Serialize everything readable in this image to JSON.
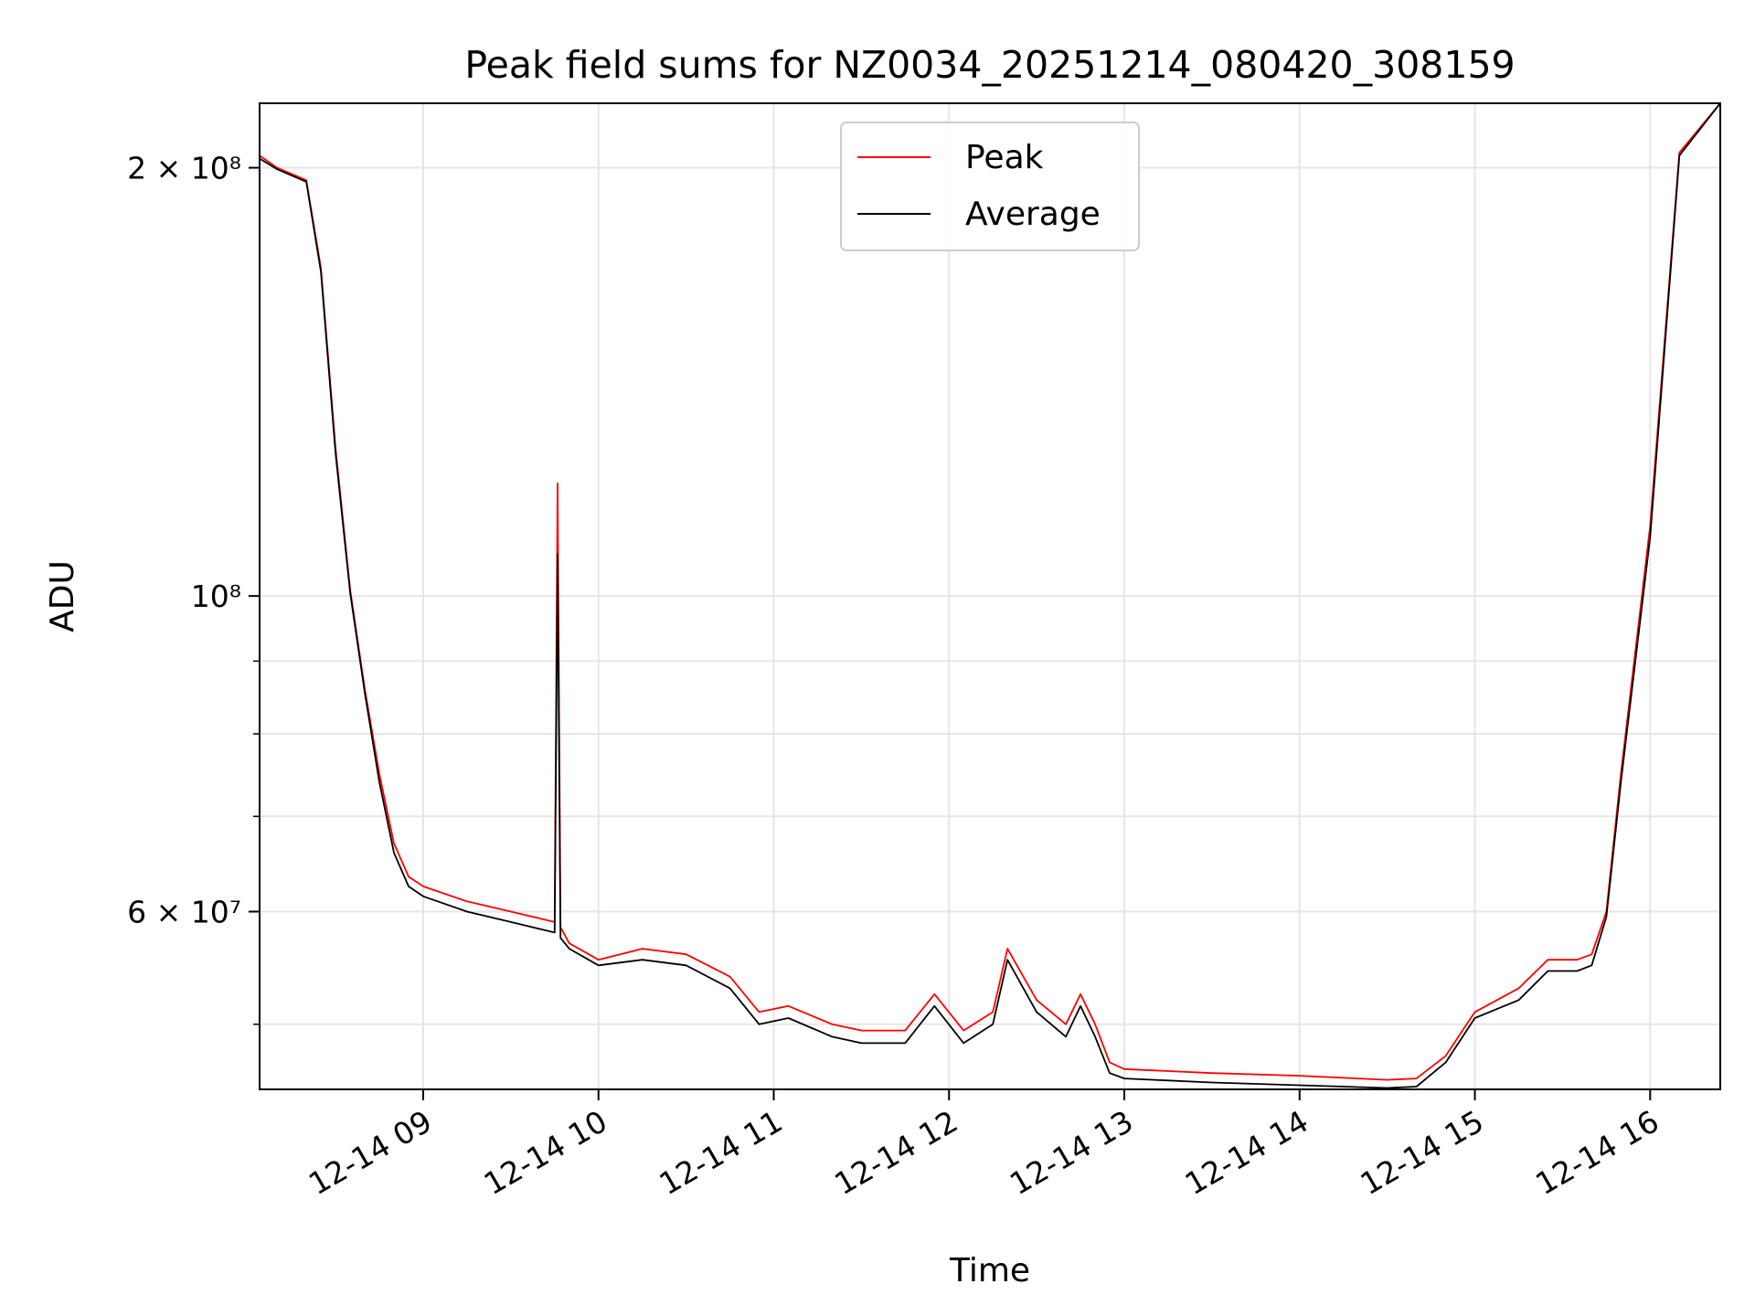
{
  "chart_data": {
    "type": "line",
    "title": "Peak field sums for NZ0034_20251214_080420_308159",
    "xlabel": "Time",
    "ylabel": "ADU",
    "x_axis": {
      "kind": "time",
      "range": [
        "2025-12-14 08:04",
        "2025-12-14 16:24"
      ],
      "ticks": [
        {
          "t": "2025-12-14 09:00",
          "label": "12-14 09"
        },
        {
          "t": "2025-12-14 10:00",
          "label": "12-14 10"
        },
        {
          "t": "2025-12-14 11:00",
          "label": "12-14 11"
        },
        {
          "t": "2025-12-14 12:00",
          "label": "12-14 12"
        },
        {
          "t": "2025-12-14 13:00",
          "label": "12-14 13"
        },
        {
          "t": "2025-12-14 14:00",
          "label": "12-14 14"
        },
        {
          "t": "2025-12-14 15:00",
          "label": "12-14 15"
        },
        {
          "t": "2025-12-14 16:00",
          "label": "12-14 16"
        }
      ]
    },
    "y_axis": {
      "scale": "log",
      "range": [
        45000000,
        222000000
      ],
      "major_ticks": [
        {
          "v": 200000000,
          "label": "2 × 10⁸"
        },
        {
          "v": 100000000,
          "label": "10⁸"
        },
        {
          "v": 60000000,
          "label": "6 × 10⁷"
        }
      ],
      "minor_ticks": [
        50000000,
        70000000,
        80000000,
        90000000
      ]
    },
    "grid": true,
    "legend": {
      "placement": "upper-center",
      "entries": [
        "Peak",
        "Average"
      ]
    },
    "colors": {
      "Peak": "#ff0000",
      "Average": "#000000",
      "grid": "#e6e6e6"
    },
    "series": [
      {
        "name": "Peak",
        "x": [
          "2025-12-14 08:04",
          "2025-12-14 08:10",
          "2025-12-14 08:20",
          "2025-12-14 08:25",
          "2025-12-14 08:30",
          "2025-12-14 08:35",
          "2025-12-14 08:40",
          "2025-12-14 08:45",
          "2025-12-14 08:50",
          "2025-12-14 08:55",
          "2025-12-14 09:00",
          "2025-12-14 09:15",
          "2025-12-14 09:30",
          "2025-12-14 09:45",
          "2025-12-14 09:46",
          "2025-12-14 09:47",
          "2025-12-14 09:50",
          "2025-12-14 10:00",
          "2025-12-14 10:15",
          "2025-12-14 10:30",
          "2025-12-14 10:45",
          "2025-12-14 10:55",
          "2025-12-14 11:05",
          "2025-12-14 11:20",
          "2025-12-14 11:30",
          "2025-12-14 11:45",
          "2025-12-14 11:55",
          "2025-12-14 12:05",
          "2025-12-14 12:15",
          "2025-12-14 12:20",
          "2025-12-14 12:30",
          "2025-12-14 12:40",
          "2025-12-14 12:45",
          "2025-12-14 12:50",
          "2025-12-14 12:55",
          "2025-12-14 13:00",
          "2025-12-14 13:30",
          "2025-12-14 14:00",
          "2025-12-14 14:30",
          "2025-12-14 14:40",
          "2025-12-14 14:50",
          "2025-12-14 15:00",
          "2025-12-14 15:15",
          "2025-12-14 15:25",
          "2025-12-14 15:35",
          "2025-12-14 15:40",
          "2025-12-14 15:45",
          "2025-12-14 15:50",
          "2025-12-14 16:00",
          "2025-12-14 16:10",
          "2025-12-14 16:24"
        ],
        "y": [
          204000000,
          200000000,
          196000000,
          170000000,
          127000000,
          101000000,
          86000000,
          75000000,
          67000000,
          63500000,
          62500000,
          61000000,
          60000000,
          59000000,
          120000000,
          58500000,
          57000000,
          55500000,
          56500000,
          56000000,
          54000000,
          51000000,
          51500000,
          50000000,
          49500000,
          49500000,
          52500000,
          49500000,
          51000000,
          56500000,
          52000000,
          50000000,
          52500000,
          50000000,
          47000000,
          46500000,
          46200000,
          46000000,
          45700000,
          45800000,
          47500000,
          51000000,
          53000000,
          55500000,
          55500000,
          56000000,
          60000000,
          75000000,
          112000000,
          205000000,
          222000000
        ]
      },
      {
        "name": "Average",
        "x": [
          "2025-12-14 08:04",
          "2025-12-14 08:10",
          "2025-12-14 08:20",
          "2025-12-14 08:25",
          "2025-12-14 08:30",
          "2025-12-14 08:35",
          "2025-12-14 08:40",
          "2025-12-14 08:45",
          "2025-12-14 08:50",
          "2025-12-14 08:55",
          "2025-12-14 09:00",
          "2025-12-14 09:15",
          "2025-12-14 09:30",
          "2025-12-14 09:45",
          "2025-12-14 09:46",
          "2025-12-14 09:47",
          "2025-12-14 09:50",
          "2025-12-14 10:00",
          "2025-12-14 10:15",
          "2025-12-14 10:30",
          "2025-12-14 10:45",
          "2025-12-14 10:55",
          "2025-12-14 11:05",
          "2025-12-14 11:20",
          "2025-12-14 11:30",
          "2025-12-14 11:45",
          "2025-12-14 11:55",
          "2025-12-14 12:05",
          "2025-12-14 12:15",
          "2025-12-14 12:20",
          "2025-12-14 12:30",
          "2025-12-14 12:40",
          "2025-12-14 12:45",
          "2025-12-14 12:50",
          "2025-12-14 12:55",
          "2025-12-14 13:00",
          "2025-12-14 13:30",
          "2025-12-14 14:00",
          "2025-12-14 14:30",
          "2025-12-14 14:40",
          "2025-12-14 14:50",
          "2025-12-14 15:00",
          "2025-12-14 15:15",
          "2025-12-14 15:25",
          "2025-12-14 15:35",
          "2025-12-14 15:40",
          "2025-12-14 15:45",
          "2025-12-14 15:50",
          "2025-12-14 16:00",
          "2025-12-14 16:10",
          "2025-12-14 16:24"
        ],
        "y": [
          203000000,
          199500000,
          195500000,
          169000000,
          126000000,
          100500000,
          85500000,
          74000000,
          66000000,
          62500000,
          61500000,
          60000000,
          59000000,
          58000000,
          107000000,
          57500000,
          56500000,
          55000000,
          55500000,
          55000000,
          53000000,
          50000000,
          50500000,
          49000000,
          48500000,
          48500000,
          51500000,
          48500000,
          50000000,
          55500000,
          51000000,
          49000000,
          51500000,
          49000000,
          46200000,
          45800000,
          45500000,
          45300000,
          45100000,
          45200000,
          47000000,
          50500000,
          52000000,
          54500000,
          54500000,
          55000000,
          59500000,
          74000000,
          110000000,
          204000000,
          222000000
        ]
      }
    ]
  }
}
